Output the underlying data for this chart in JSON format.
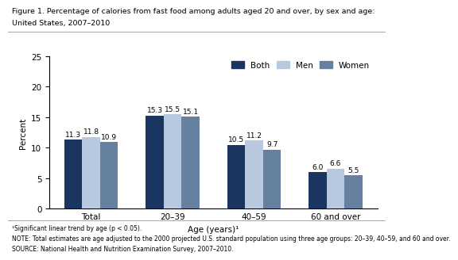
{
  "title_line1": "Figure 1. Percentage of calories from fast food among adults aged 20 and over, by sex and age:",
  "title_line2": "United States, 2007–2010",
  "categories": [
    "Total",
    "20–39",
    "40–59",
    "60 and over"
  ],
  "series": {
    "Both": [
      11.3,
      15.3,
      10.5,
      6.0
    ],
    "Men": [
      11.8,
      15.5,
      11.2,
      6.6
    ],
    "Women": [
      10.9,
      15.1,
      9.7,
      5.5
    ]
  },
  "colors": {
    "Both": "#1a3660",
    "Men": "#b8c8de",
    "Women": "#6680a0"
  },
  "ylabel": "Percent",
  "xlabel": "Age (years)¹",
  "ylim": [
    0,
    25
  ],
  "yticks": [
    0,
    5,
    10,
    15,
    20,
    25
  ],
  "legend_labels": [
    "Both",
    "Men",
    "Women"
  ],
  "footnote1": "¹Significant linear trend by age (p < 0.05).",
  "footnote2": "NOTE: Total estimates are age adjusted to the 2000 projected U.S. standard population using three age groups: 20–39, 40–59, and 60 and over.",
  "footnote3": "SOURCE: National Health and Nutrition Examination Survey, 2007–2010.",
  "bar_width": 0.22,
  "value_fontsize": 6.5,
  "label_fontsize": 7.5,
  "tick_fontsize": 7.5,
  "title_fontsize": 6.8,
  "legend_fontsize": 7.5,
  "footnote_fontsize": 5.5
}
